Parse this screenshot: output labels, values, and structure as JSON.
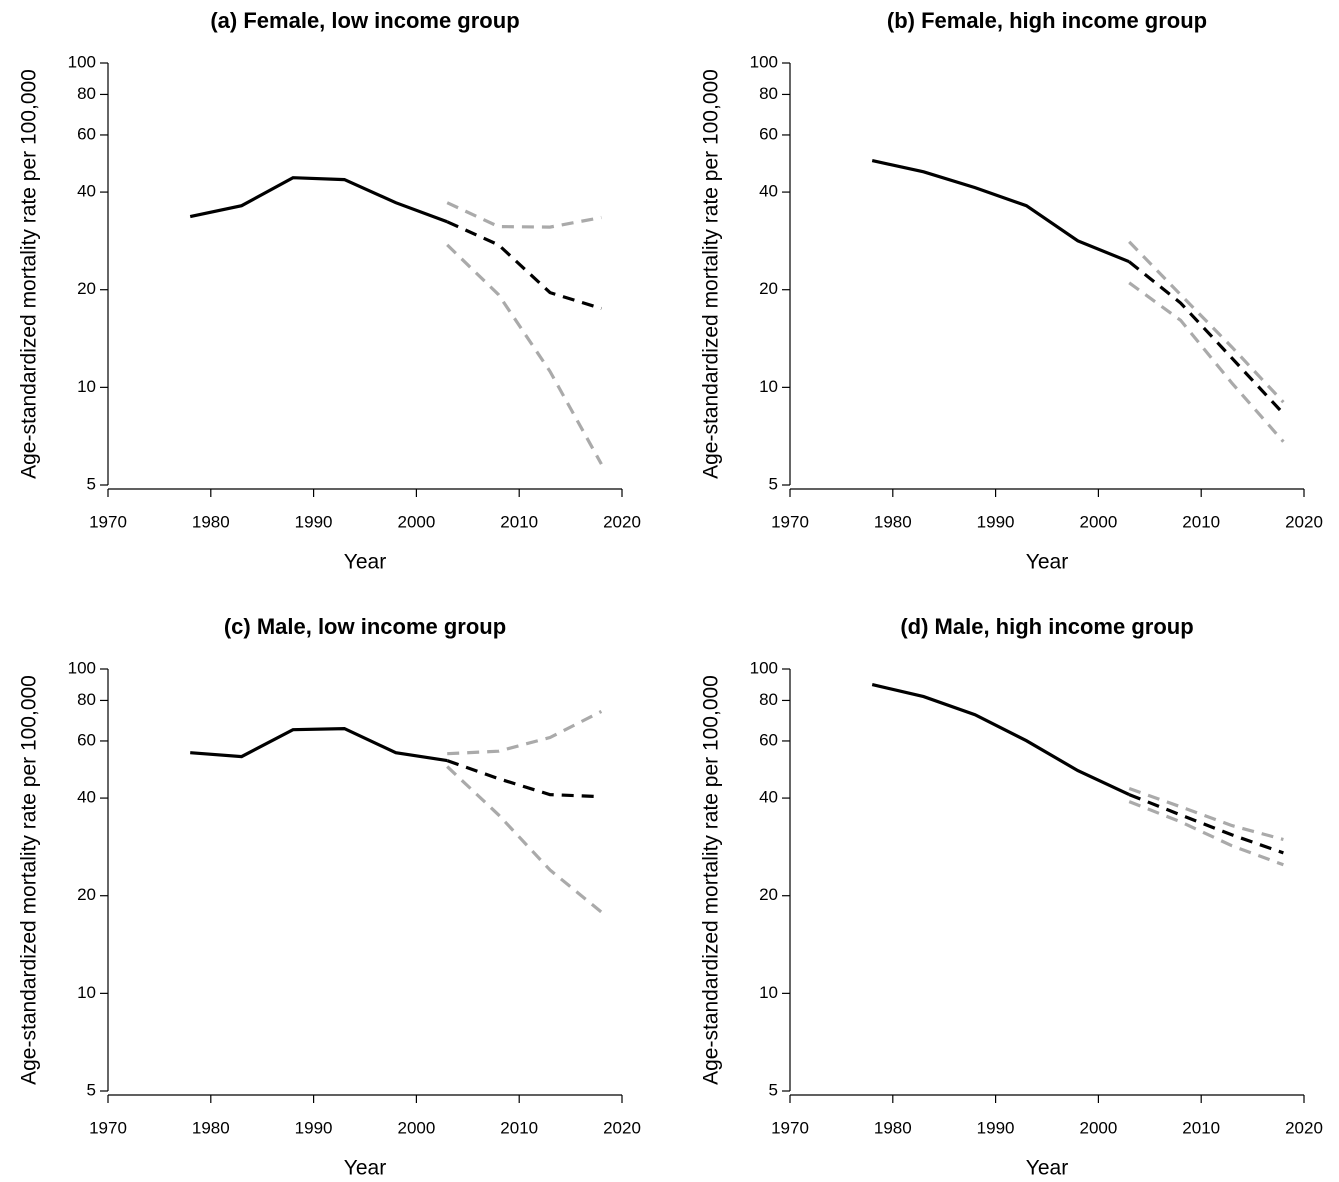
{
  "chart_data": [
    {
      "type": "line",
      "title": "(a) Female, low income group",
      "xlabel": "Year",
      "ylabel": "Age-standardized mortality rate per 100,000",
      "log_y": true,
      "xlim": [
        1970,
        2020
      ],
      "ylim": [
        5,
        100
      ],
      "xticks": [
        1970,
        1980,
        1990,
        2000,
        2010,
        2020
      ],
      "yticks": [
        5,
        10,
        20,
        40,
        60,
        80,
        100
      ],
      "x": [
        1978,
        1983,
        1988,
        1993,
        1998,
        2003,
        2008,
        2013,
        2018
      ],
      "series": [
        {
          "color": "#000000",
          "linestyle": "solid",
          "values": [
            33.6,
            36.3,
            44.3,
            43.7,
            37.1,
            32.4,
            null,
            null,
            null
          ]
        },
        {
          "color": "#aaaaaa",
          "linestyle": "dashed",
          "values": [
            null,
            null,
            null,
            null,
            null,
            37.1,
            31.3,
            31.2,
            33.4
          ]
        },
        {
          "color": "#aaaaaa",
          "linestyle": "dashed",
          "values": [
            null,
            null,
            null,
            null,
            null,
            27.5,
            19.3,
            11.2,
            5.8
          ]
        },
        {
          "color": "#000000",
          "linestyle": "dashed",
          "values": [
            null,
            null,
            null,
            null,
            null,
            32.4,
            27.5,
            19.6,
            17.5
          ]
        }
      ]
    },
    {
      "type": "line",
      "title": "(b) Female, high income group",
      "xlabel": "Year",
      "ylabel": "Age-standardized mortality rate per 100,000",
      "log_y": true,
      "xlim": [
        1970,
        2020
      ],
      "ylim": [
        5,
        100
      ],
      "xticks": [
        1970,
        1980,
        1990,
        2000,
        2010,
        2020
      ],
      "yticks": [
        5,
        10,
        20,
        40,
        60,
        80,
        100
      ],
      "x": [
        1978,
        1983,
        1988,
        1993,
        1998,
        2003,
        2008,
        2013,
        2018
      ],
      "series": [
        {
          "color": "#000000",
          "linestyle": "solid",
          "values": [
            50,
            46.2,
            41.3,
            36.3,
            28.3,
            24.4,
            null,
            null,
            null
          ]
        },
        {
          "color": "#aaaaaa",
          "linestyle": "dashed",
          "values": [
            null,
            null,
            null,
            null,
            null,
            28.1,
            19.3,
            13.3,
            9.0
          ]
        },
        {
          "color": "#aaaaaa",
          "linestyle": "dashed",
          "values": [
            null,
            null,
            null,
            null,
            null,
            21.0,
            16.1,
            10.3,
            6.8
          ]
        },
        {
          "color": "#000000",
          "linestyle": "dashed",
          "values": [
            null,
            null,
            null,
            null,
            null,
            24.4,
            18.2,
            12.3,
            8.3
          ]
        }
      ]
    },
    {
      "type": "line",
      "title": "(c) Male, low income group",
      "xlabel": "Year",
      "ylabel": "Age-standardized mortality rate per 100,000",
      "log_y": true,
      "xlim": [
        1970,
        2020
      ],
      "ylim": [
        5,
        100
      ],
      "xticks": [
        1970,
        1980,
        1990,
        2000,
        2010,
        2020
      ],
      "yticks": [
        5,
        10,
        20,
        40,
        60,
        80,
        100
      ],
      "x": [
        1978,
        1983,
        1988,
        1993,
        1998,
        2003,
        2008,
        2013,
        2018
      ],
      "series": [
        {
          "color": "#000000",
          "linestyle": "solid",
          "values": [
            55.2,
            53.7,
            65.0,
            65.5,
            55.2,
            52.2,
            null,
            null,
            null
          ]
        },
        {
          "color": "#aaaaaa",
          "linestyle": "dashed",
          "values": [
            null,
            null,
            null,
            null,
            null,
            54.8,
            55.8,
            61.5,
            74.0
          ]
        },
        {
          "color": "#aaaaaa",
          "linestyle": "dashed",
          "values": [
            null,
            null,
            null,
            null,
            null,
            50,
            35.5,
            24.0,
            17.8
          ]
        },
        {
          "color": "#000000",
          "linestyle": "dashed",
          "values": [
            null,
            null,
            null,
            null,
            null,
            52.2,
            45.9,
            41.0,
            40.4
          ]
        }
      ]
    },
    {
      "type": "line",
      "title": "(d) Male, high income group",
      "xlabel": "Year",
      "ylabel": "Age-standardized mortality rate per 100,000",
      "log_y": true,
      "xlim": [
        1970,
        2020
      ],
      "ylim": [
        5,
        100
      ],
      "xticks": [
        1970,
        1980,
        1990,
        2000,
        2010,
        2020
      ],
      "yticks": [
        5,
        10,
        20,
        40,
        60,
        80,
        100
      ],
      "x": [
        1978,
        1983,
        1988,
        1993,
        1998,
        2003,
        2008,
        2013,
        2018
      ],
      "series": [
        {
          "color": "#000000",
          "linestyle": "solid",
          "values": [
            89.5,
            82.2,
            72.3,
            60.1,
            48.6,
            41.0,
            null,
            null,
            null
          ]
        },
        {
          "color": "#aaaaaa",
          "linestyle": "dashed",
          "values": [
            null,
            null,
            null,
            null,
            null,
            42.8,
            37.6,
            32.9,
            29.8
          ]
        },
        {
          "color": "#aaaaaa",
          "linestyle": "dashed",
          "values": [
            null,
            null,
            null,
            null,
            null,
            39.0,
            33.8,
            28.5,
            24.9
          ]
        },
        {
          "color": "#000000",
          "linestyle": "dashed",
          "values": [
            null,
            null,
            null,
            null,
            null,
            41.0,
            35.5,
            30.8,
            27.1
          ]
        }
      ]
    }
  ]
}
